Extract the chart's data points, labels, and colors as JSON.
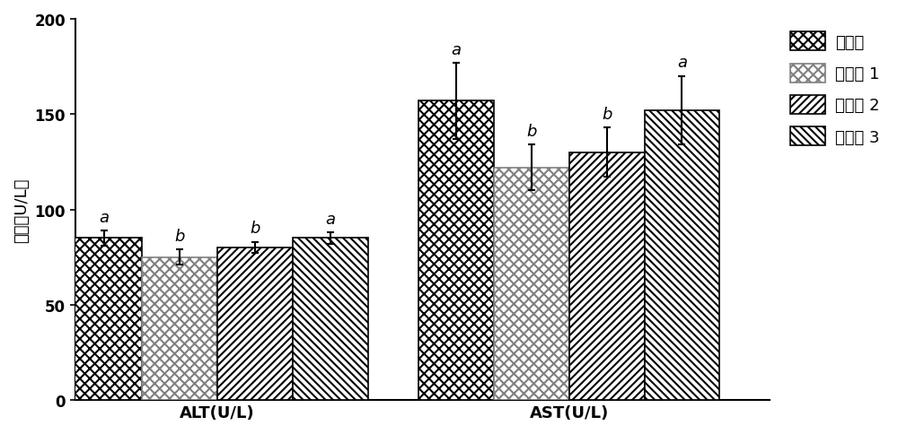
{
  "groups": [
    "对照组",
    "试验组 1",
    "试验组 2",
    "试验组 3"
  ],
  "enzymes": [
    "ALT(U/L)",
    "AST(U/L)"
  ],
  "values": {
    "ALT(U/L)": [
      85,
      75,
      80,
      85
    ],
    "AST(U/L)": [
      157,
      122,
      130,
      152
    ]
  },
  "errors": {
    "ALT(U/L)": [
      4,
      4,
      3,
      3
    ],
    "AST(U/L)": [
      20,
      12,
      13,
      18
    ]
  },
  "significance": {
    "ALT(U/L)": [
      "a",
      "b",
      "b",
      "a"
    ],
    "AST(U/L)": [
      "a",
      "b",
      "b",
      "a"
    ]
  },
  "ylabel": "活性（U/L）",
  "ylim": [
    0,
    200
  ],
  "yticks": [
    0,
    50,
    100,
    150,
    200
  ],
  "bar_width": 0.09,
  "enzyme_centers": [
    0.22,
    0.64
  ],
  "legend_labels": [
    "对照组",
    "试验组 1",
    "试验组 2",
    "试验组 3"
  ],
  "sig_font_size": 13,
  "xlabel_font_size": 13,
  "ylabel_font_size": 13,
  "tick_font_size": 12,
  "legend_font_size": 13
}
